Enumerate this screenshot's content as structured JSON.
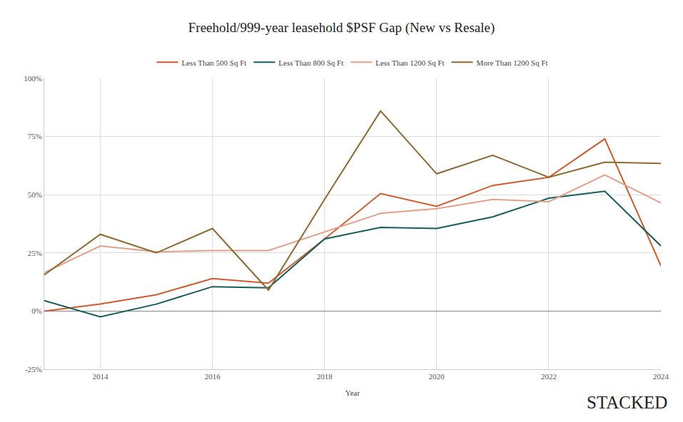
{
  "chart_data": {
    "type": "line",
    "title": "Freehold/999-year leasehold $PSF Gap (New vs Resale)",
    "x_label": "Year",
    "x": [
      2013,
      2014,
      2015,
      2016,
      2017,
      2018,
      2019,
      2020,
      2021,
      2022,
      2023,
      2024
    ],
    "series": [
      {
        "name": "Less Than 500 Sq Ft",
        "color": "#d35a2b",
        "values": [
          0,
          3,
          7,
          14,
          12,
          31,
          50.5,
          45,
          54,
          57.5,
          74,
          19.5
        ]
      },
      {
        "name": "Less Than 800 Sq Ft",
        "color": "#135e5b",
        "values": [
          4.5,
          -2.5,
          3,
          10.5,
          10,
          31,
          36,
          35.5,
          40.5,
          48.5,
          51.5,
          28
        ]
      },
      {
        "name": "Less Than 1200 Sq Ft",
        "color": "#e3a088",
        "values": [
          16.5,
          28,
          25.5,
          26,
          26,
          34,
          42,
          44,
          48,
          47,
          58.5,
          46.5
        ]
      },
      {
        "name": "More Than 1200 Sq Ft",
        "color": "#8d6a30",
        "values": [
          15.5,
          33,
          25,
          35.5,
          9,
          48,
          86,
          59,
          67,
          57.5,
          64,
          63.5
        ]
      }
    ],
    "xlim": [
      2013,
      2024
    ],
    "xticks": [
      2014,
      2016,
      2018,
      2020,
      2022,
      2024
    ],
    "ylim": [
      -25,
      100
    ],
    "yticks": [
      {
        "value": -25,
        "label": "-25%"
      },
      {
        "value": 0,
        "label": "0%"
      },
      {
        "value": 25,
        "label": "25%"
      },
      {
        "value": 50,
        "label": "50%"
      },
      {
        "value": 75,
        "label": "75%"
      },
      {
        "value": 100,
        "label": "100%"
      }
    ],
    "grid": true,
    "legend": "top",
    "annotations": [
      "STACKED"
    ]
  }
}
